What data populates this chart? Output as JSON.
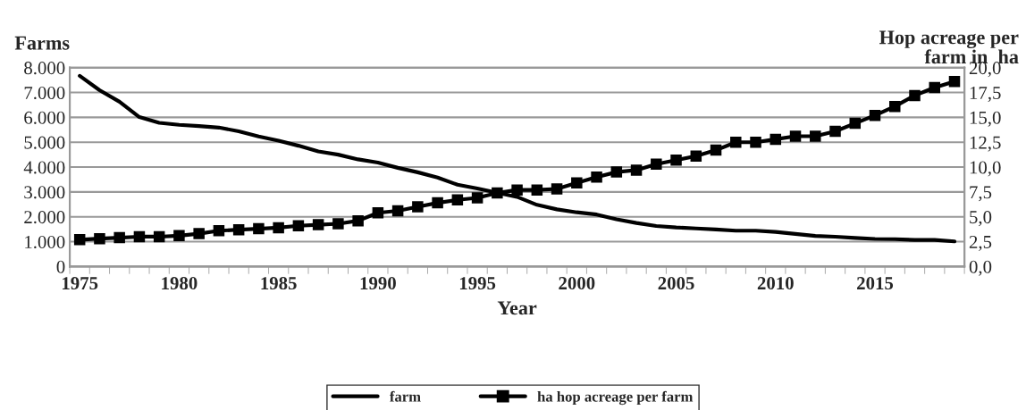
{
  "chart_data": {
    "type": "line",
    "xlabel": "Year",
    "ylabel": "Farms",
    "y2label": "Hop acreage per\nfarm in  ha",
    "categories": [
      "1975",
      null,
      null,
      null,
      null,
      "1980",
      null,
      null,
      null,
      null,
      "1985",
      null,
      null,
      null,
      null,
      "1990",
      null,
      null,
      null,
      null,
      "1995",
      null,
      null,
      null,
      null,
      "2000",
      null,
      null,
      null,
      null,
      "2005",
      null,
      null,
      null,
      null,
      "2010",
      null,
      null,
      null,
      null,
      "2015",
      null,
      null,
      null,
      null
    ],
    "series": [
      {
        "name": "farm",
        "color": "#000000",
        "marker": "none",
        "values": [
          7670,
          7090,
          6630,
          6010,
          5780,
          5700,
          5650,
          5590,
          5440,
          5230,
          5060,
          4860,
          4630,
          4500,
          4310,
          4180,
          3970,
          3790,
          3580,
          3290,
          3140,
          2970,
          2800,
          2480,
          2300,
          2180,
          2090,
          1900,
          1750,
          1630,
          1570,
          1530,
          1490,
          1440,
          1440,
          1390,
          1310,
          1230,
          1200,
          1150,
          1110,
          1100,
          1070,
          1070,
          1010
        ]
      },
      {
        "name": "ha hop acreage per farm",
        "color": "#000000",
        "marker": "square",
        "axis": "y2",
        "values": [
          2.7,
          2.8,
          2.9,
          3.0,
          3.0,
          3.1,
          3.3,
          3.6,
          3.7,
          3.8,
          3.9,
          4.1,
          4.2,
          4.3,
          4.6,
          5.4,
          5.6,
          6.0,
          6.4,
          6.7,
          6.9,
          7.4,
          7.7,
          7.7,
          7.8,
          8.4,
          9.0,
          9.5,
          9.7,
          10.3,
          10.7,
          11.1,
          11.7,
          12.5,
          12.5,
          12.8,
          13.1,
          13.1,
          13.6,
          14.4,
          15.2,
          16.1,
          17.2,
          18.0,
          18.6
        ]
      }
    ],
    "ylim": [
      0,
      8000
    ],
    "yticks": [
      0,
      {
        "value": 1000,
        "label": "1.000"
      },
      {
        "value": 2000,
        "label": "2.000"
      },
      {
        "value": 3000,
        "label": "3.000"
      },
      {
        "value": 4000,
        "label": "4.000"
      },
      {
        "value": 5000,
        "label": "5.000"
      },
      {
        "value": 6000,
        "label": "6.000"
      },
      {
        "value": 7000,
        "label": "7.000"
      },
      {
        "value": 8000,
        "label": "8.000"
      }
    ],
    "y2lim": [
      0,
      20
    ],
    "y2ticks": [
      {
        "value": 0,
        "label": "0,0"
      },
      {
        "value": 2.5,
        "label": "2,5"
      },
      {
        "value": 5,
        "label": "5,0"
      },
      {
        "value": 7.5,
        "label": "7,5"
      },
      {
        "value": 10,
        "label": "10,0"
      },
      {
        "value": 12.5,
        "label": "12,5"
      },
      {
        "value": 15,
        "label": "15,0"
      },
      {
        "value": 17.5,
        "label": "17,5"
      },
      {
        "value": 20,
        "label": "20,0"
      }
    ],
    "grid": "y",
    "legend": "bottom"
  }
}
